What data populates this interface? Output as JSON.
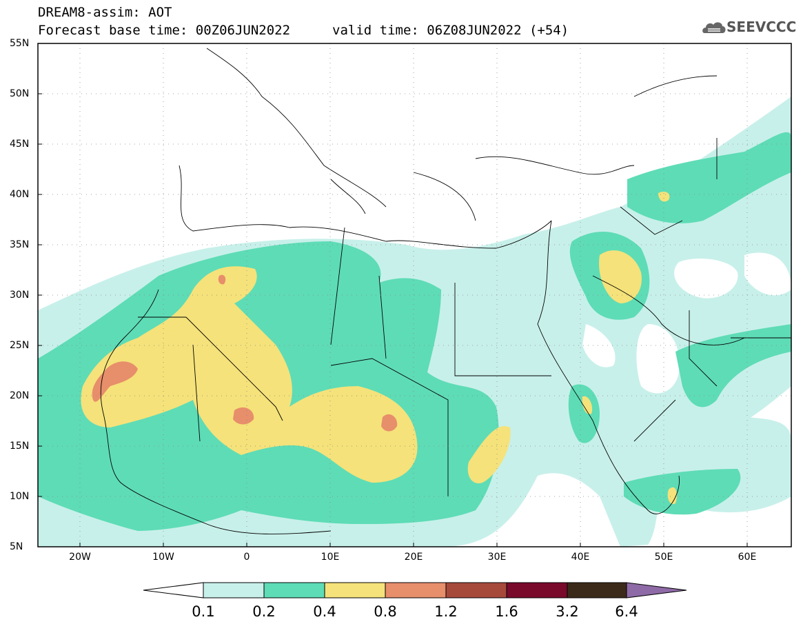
{
  "header": {
    "title_line1": "DREAM8-assim: AOT",
    "title_line2": "Forecast base time: 00Z06JUN2022",
    "valid_time": "valid time: 06Z08JUN2022 (+54)",
    "logo_text": "SEEVCCC",
    "logo_icon": "cloud-icon"
  },
  "map": {
    "lat_labels": [
      "55N",
      "50N",
      "45N",
      "40N",
      "35N",
      "30N",
      "25N",
      "20N",
      "15N",
      "10N",
      "5N"
    ],
    "lon_labels": [
      "20W",
      "10W",
      "0",
      "10E",
      "20E",
      "30E",
      "40E",
      "50E",
      "60E"
    ],
    "lon_range": [
      -25,
      65
    ],
    "lat_range": [
      5,
      55
    ]
  },
  "colorbar": {
    "labels": [
      "0.1",
      "0.2",
      "0.4",
      "0.8",
      "1.2",
      "1.6",
      "3.2",
      "6.4"
    ],
    "colors": [
      "#ffffff",
      "#c8f0ea",
      "#5edcb6",
      "#f5e27a",
      "#e78e6b",
      "#a6493b",
      "#7a0a2b",
      "#3b2a1a",
      "#8e6aa6"
    ]
  },
  "colors": {
    "level_0_1": "#c8f0ea",
    "level_0_2": "#5edcb6",
    "level_0_4": "#f5e27a",
    "level_0_8": "#e78e6b"
  }
}
